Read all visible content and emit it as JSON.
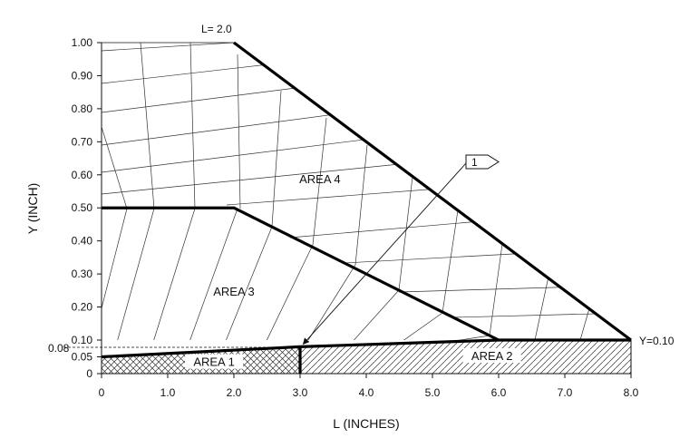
{
  "chart_data": {
    "type": "diagram",
    "xlabel": "L (INCHES)",
    "ylabel": "Y (INCH)",
    "xlim": [
      0,
      8
    ],
    "ylim": [
      0,
      1
    ],
    "x_ticks": [
      {
        "v": 0,
        "label": "0"
      },
      {
        "v": 1,
        "label": "1.0"
      },
      {
        "v": 2,
        "label": "2.0"
      },
      {
        "v": 3,
        "label": "3.0"
      },
      {
        "v": 4,
        "label": "4.0"
      },
      {
        "v": 5,
        "label": "5.0"
      },
      {
        "v": 6,
        "label": "6.0"
      },
      {
        "v": 7,
        "label": "7.0"
      },
      {
        "v": 8,
        "label": "8.0"
      }
    ],
    "y_ticks": [
      {
        "v": 0,
        "label": "0"
      },
      {
        "v": 0.05,
        "label": "0.05"
      },
      {
        "v": 0.1,
        "label": "0.10"
      },
      {
        "v": 0.2,
        "label": "0.20"
      },
      {
        "v": 0.3,
        "label": "0.30"
      },
      {
        "v": 0.4,
        "label": "0.40"
      },
      {
        "v": 0.5,
        "label": "0.50"
      },
      {
        "v": 0.6,
        "label": "0.60"
      },
      {
        "v": 0.7,
        "label": "0.70"
      },
      {
        "v": 0.8,
        "label": "0.80"
      },
      {
        "v": 0.9,
        "label": "0.90"
      },
      {
        "v": 1.0,
        "label": "1.00"
      }
    ],
    "extra_y_label": {
      "v": 0.08,
      "label": "0.08"
    },
    "annotations": {
      "top": "L= 2.0",
      "right": "Y=0.10",
      "callout": "1"
    },
    "areas": [
      {
        "name": "AREA 1",
        "at": [
          1.7,
          0.028
        ]
      },
      {
        "name": "AREA 2",
        "at": [
          5.9,
          0.046
        ]
      },
      {
        "name": "AREA 3",
        "at": [
          2.0,
          0.24
        ]
      },
      {
        "name": "AREA 4",
        "at": [
          3.3,
          0.58
        ]
      }
    ],
    "boundaries": [
      {
        "name": "top-diagonal",
        "points": [
          [
            2,
            1.0
          ],
          [
            8,
            0.1
          ]
        ]
      },
      {
        "name": "area3-top",
        "points": [
          [
            0,
            0.5
          ],
          [
            2,
            0.5
          ],
          [
            6,
            0.1
          ]
        ]
      },
      {
        "name": "y-0.10-line",
        "points": [
          [
            6,
            0.1
          ],
          [
            8,
            0.1
          ]
        ]
      },
      {
        "name": "lower-boundary",
        "points": [
          [
            0,
            0.05
          ],
          [
            3,
            0.08
          ],
          [
            6,
            0.1
          ]
        ]
      },
      {
        "name": "area-1-2-divider",
        "points": [
          [
            3,
            0
          ],
          [
            3,
            0.08
          ]
        ]
      }
    ],
    "callout_arrow": {
      "from": [
        5.6,
        0.63
      ],
      "to": [
        3.02,
        0.08
      ]
    }
  }
}
